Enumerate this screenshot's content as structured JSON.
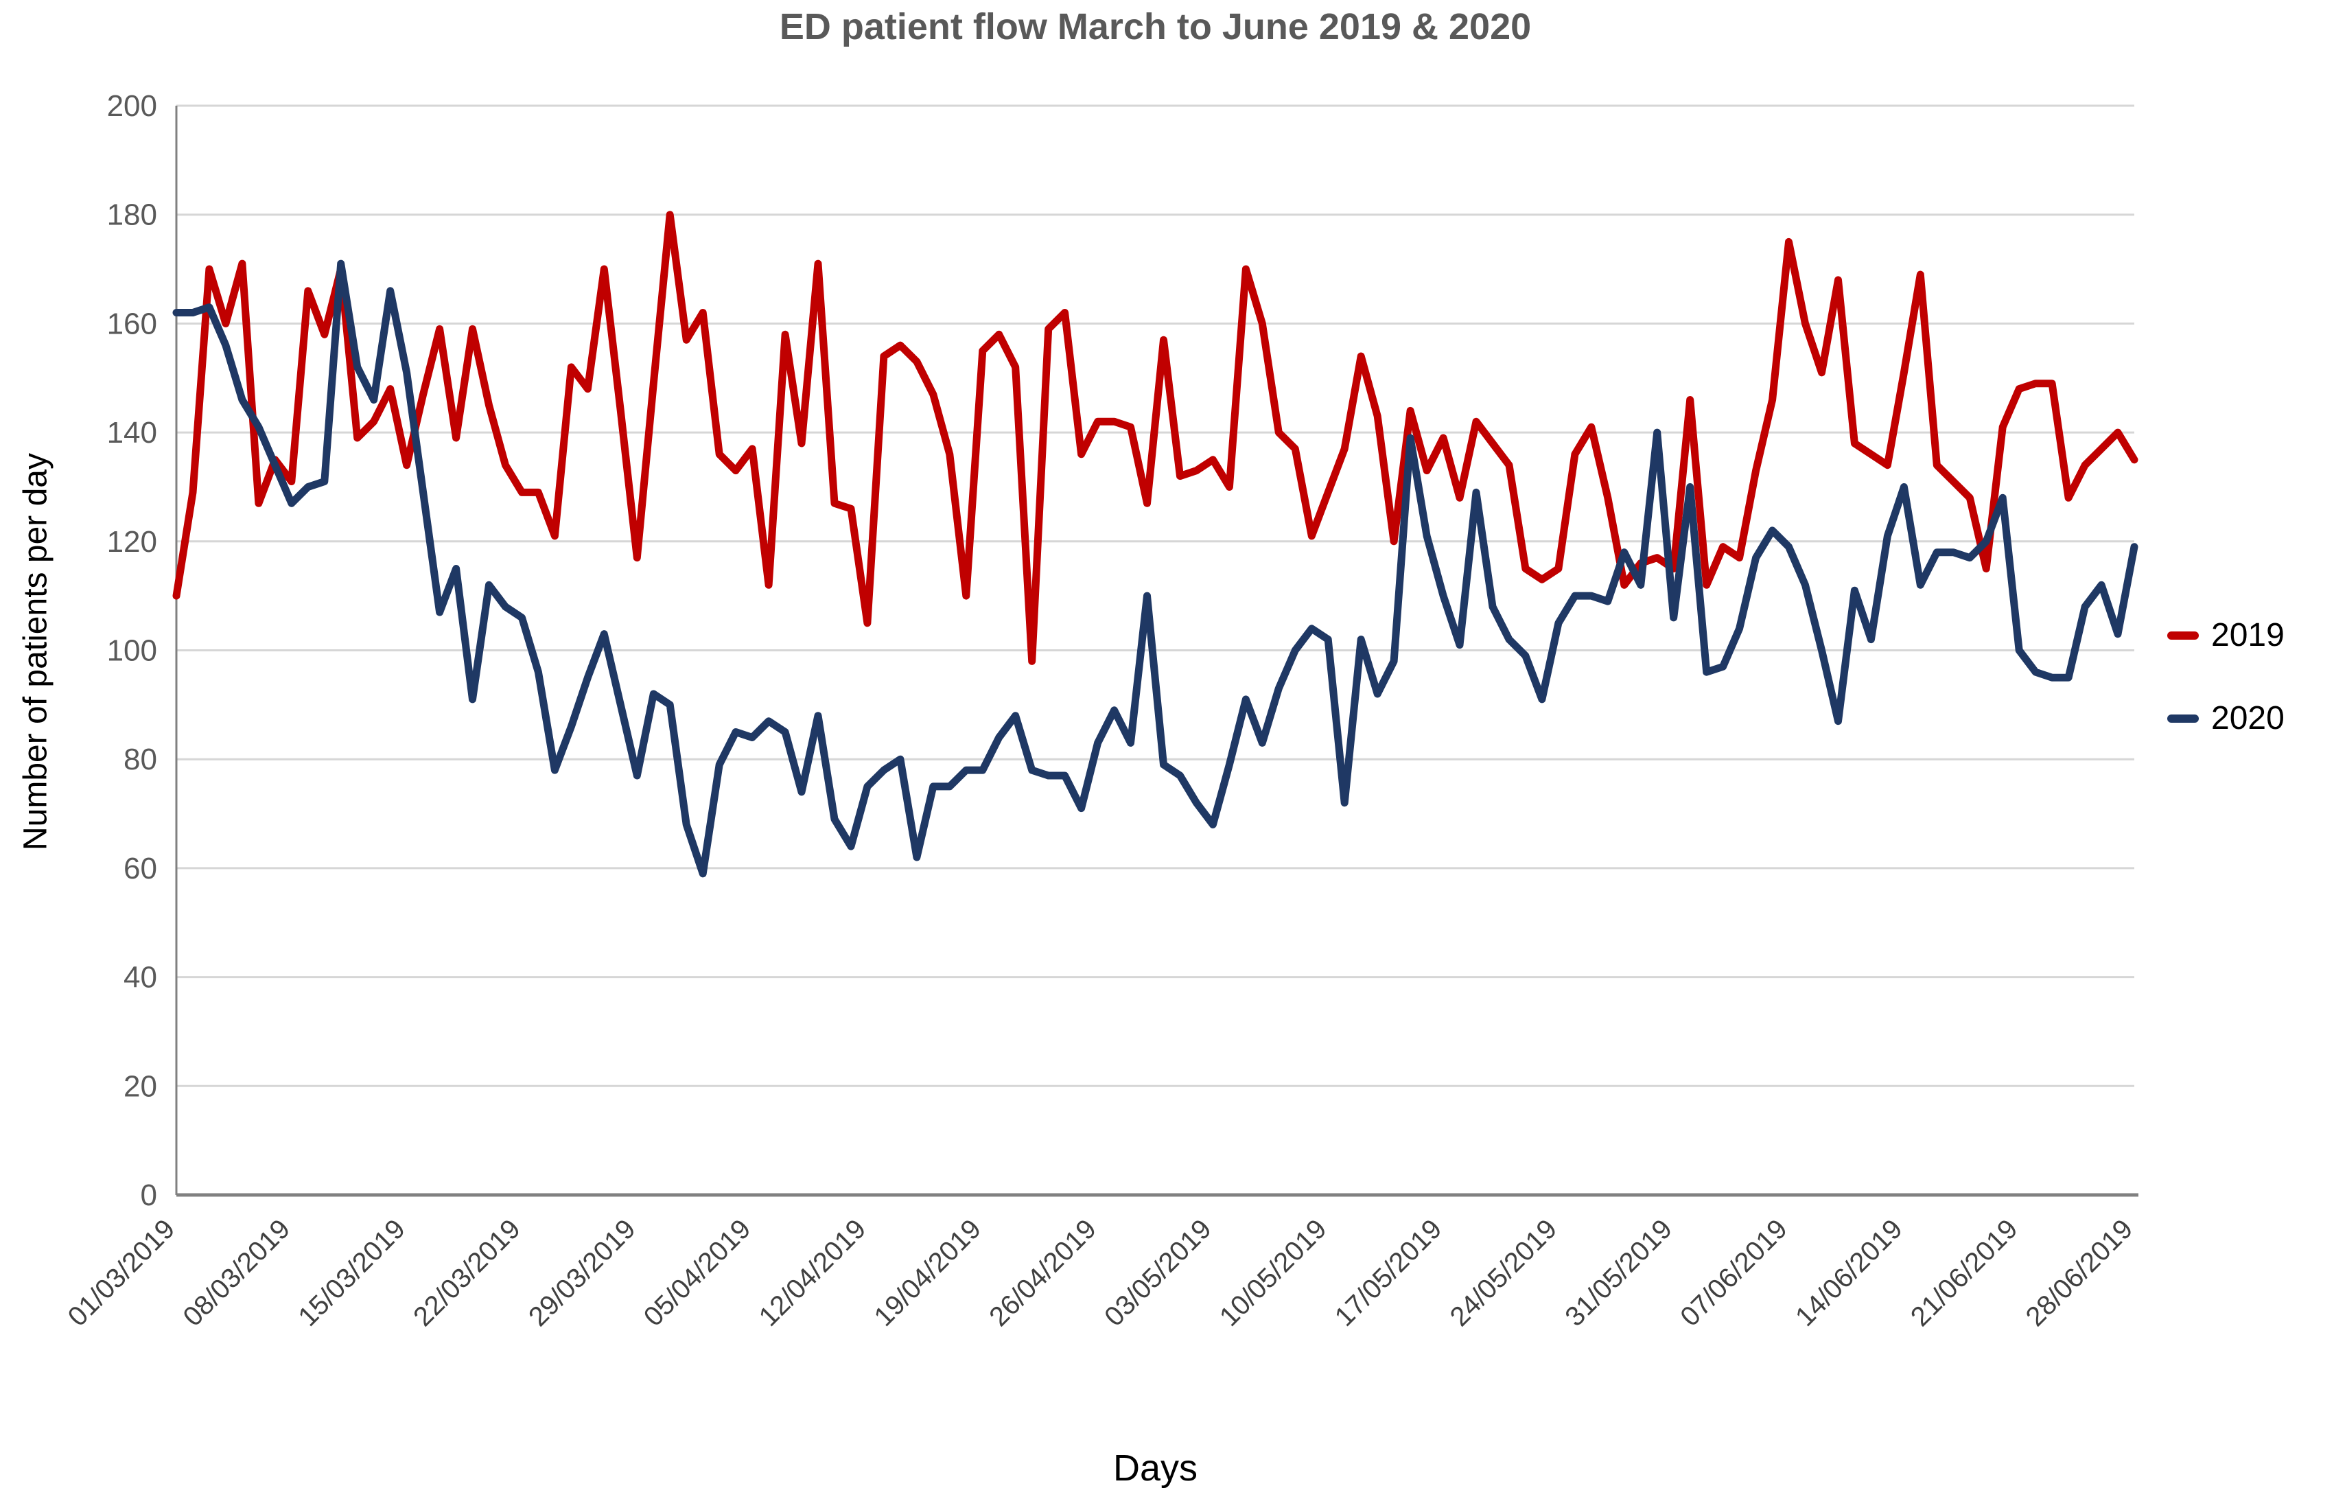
{
  "title": "ED patient flow March to June 2019 & 2020",
  "y_axis": {
    "title": "Number of patients per day"
  },
  "x_axis": {
    "title": "Days"
  },
  "legend": {
    "items": [
      {
        "label": "2019",
        "color": "#C00000"
      },
      {
        "label": "2020",
        "color": "#1F3864"
      }
    ]
  },
  "colors": {
    "series_2019": "#C00000",
    "series_2020": "#1F3864",
    "gridline": "#D6D6D6",
    "axis_line": "#808080",
    "title_text": "#595959",
    "tick_text": "#595959",
    "date_text": "#404040"
  },
  "chart_data": {
    "type": "line",
    "title": "ED patient flow March to June 2019 & 2020",
    "xlabel": "Days",
    "ylabel": "Number of patients per day",
    "ylim": [
      0,
      200
    ],
    "y_tick_step": 20,
    "grid": true,
    "legend_position": "right",
    "x_tick_interval_days": 7,
    "x_tick_labels": [
      "01/03/2019",
      "08/03/2019",
      "15/03/2019",
      "22/03/2019",
      "29/03/2019",
      "05/04/2019",
      "12/04/2019",
      "19/04/2019",
      "26/04/2019",
      "03/05/2019",
      "10/05/2019",
      "17/05/2019",
      "24/05/2019",
      "31/05/2019",
      "07/06/2019",
      "14/06/2019",
      "21/06/2019",
      "28/06/2019"
    ],
    "series": [
      {
        "name": "2019",
        "color": "#C00000",
        "values": [
          110,
          129,
          170,
          160,
          171,
          127,
          135,
          131,
          166,
          158,
          170,
          139,
          142,
          148,
          134,
          147,
          159,
          139,
          159,
          145,
          134,
          129,
          129,
          121,
          152,
          148,
          170,
          144,
          117,
          149,
          180,
          157,
          162,
          136,
          133,
          137,
          112,
          158,
          138,
          171,
          127,
          126,
          105,
          154,
          156,
          153,
          147,
          136,
          110,
          155,
          158,
          152,
          98,
          159,
          162,
          136,
          142,
          142,
          141,
          127,
          157,
          132,
          133,
          135,
          130,
          170,
          160,
          140,
          137,
          121,
          129,
          137,
          154,
          143,
          120,
          144,
          133,
          139,
          128,
          142,
          138,
          134,
          115,
          113,
          115,
          136,
          141,
          128,
          112,
          116,
          117,
          115,
          146,
          112,
          119,
          117,
          133,
          146,
          175,
          160,
          151,
          168,
          138,
          136,
          134,
          151,
          169,
          134,
          131,
          128,
          115,
          141,
          148,
          149,
          149,
          128,
          134,
          137,
          140,
          135
        ]
      },
      {
        "name": "2020",
        "color": "#1F3864",
        "values": [
          162,
          162,
          163,
          156,
          146,
          141,
          134,
          127,
          130,
          131,
          171,
          152,
          146,
          166,
          151,
          129,
          107,
          115,
          91,
          112,
          108,
          106,
          96,
          78,
          86,
          95,
          103,
          90,
          77,
          92,
          90,
          68,
          59,
          79,
          85,
          84,
          87,
          85,
          74,
          88,
          69,
          64,
          75,
          78,
          80,
          62,
          75,
          75,
          78,
          78,
          84,
          88,
          78,
          77,
          77,
          71,
          83,
          89,
          83,
          110,
          79,
          77,
          72,
          68,
          79,
          91,
          83,
          93,
          100,
          104,
          102,
          72,
          102,
          92,
          98,
          139,
          121,
          110,
          101,
          129,
          108,
          102,
          99,
          91,
          105,
          110,
          110,
          109,
          118,
          112,
          140,
          106,
          130,
          96,
          97,
          104,
          117,
          122,
          119,
          112,
          100,
          87,
          111,
          102,
          121,
          130,
          112,
          118,
          118,
          117,
          120,
          128,
          100,
          96,
          95,
          95,
          108,
          112,
          103,
          119
        ]
      }
    ]
  }
}
